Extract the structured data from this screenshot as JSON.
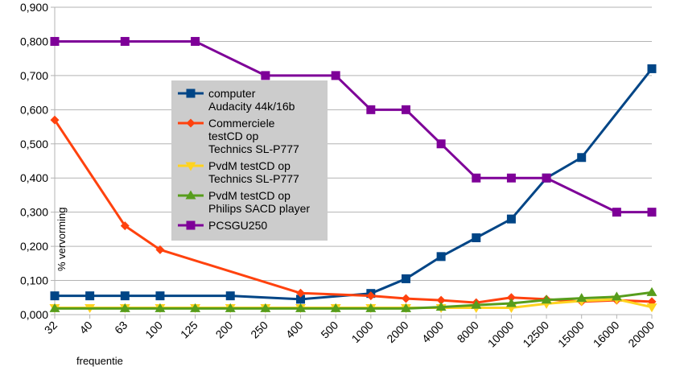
{
  "chart_data": {
    "type": "line",
    "title": "",
    "xlabel": "frequentie",
    "ylabel": "% vervorming",
    "ylim": [
      0,
      0.9
    ],
    "yticks": [
      "0,000",
      "0,100",
      "0,200",
      "0,300",
      "0,400",
      "0,500",
      "0,600",
      "0,700",
      "0,800",
      "0,900"
    ],
    "categories": [
      "32",
      "40",
      "63",
      "100",
      "125",
      "200",
      "250",
      "400",
      "500",
      "1000",
      "2000",
      "4000",
      "8000",
      "10000",
      "12500",
      "15000",
      "16000",
      "20000"
    ],
    "grid": "horizontal",
    "legend_position": "inside-left-center",
    "series": [
      {
        "name": "computer\nAudacity 44k/16b",
        "color": "#004586",
        "marker": "square",
        "values": [
          0.055,
          0.055,
          0.055,
          0.055,
          null,
          0.055,
          null,
          0.045,
          null,
          0.062,
          0.105,
          0.17,
          0.225,
          0.28,
          0.4,
          0.46,
          null,
          0.72
        ]
      },
      {
        "name": "Commerciele\ntestCD op\nTechnics SL-P777",
        "color": "#ff420e",
        "marker": "diamond",
        "values": [
          0.57,
          null,
          0.26,
          0.19,
          null,
          null,
          null,
          0.063,
          null,
          0.055,
          0.047,
          0.042,
          0.035,
          0.05,
          0.045,
          0.038,
          0.042,
          0.038
        ]
      },
      {
        "name": "PvdM testCD op\nTechnics SL-P777",
        "color": "#ffd320",
        "marker": "triangle-down",
        "values": [
          0.02,
          0.02,
          0.02,
          0.02,
          0.02,
          0.02,
          0.02,
          0.02,
          0.02,
          0.02,
          0.02,
          0.02,
          0.02,
          0.02,
          0.032,
          0.04,
          0.045,
          0.022
        ]
      },
      {
        "name": "PvdM testCD op\nPhilips SACD player",
        "color": "#579d1c",
        "marker": "triangle-up",
        "values": [
          0.018,
          null,
          0.018,
          0.018,
          0.018,
          0.018,
          0.018,
          0.018,
          0.018,
          0.018,
          0.018,
          0.022,
          0.028,
          0.033,
          0.043,
          0.048,
          0.052,
          0.065
        ]
      },
      {
        "name": "PCSGU250",
        "color": "#7e0098",
        "marker": "square",
        "values": [
          0.8,
          null,
          0.8,
          null,
          0.8,
          null,
          0.7,
          null,
          0.7,
          0.6,
          0.6,
          0.5,
          0.4,
          0.4,
          0.4,
          null,
          0.3,
          0.3
        ]
      }
    ]
  }
}
